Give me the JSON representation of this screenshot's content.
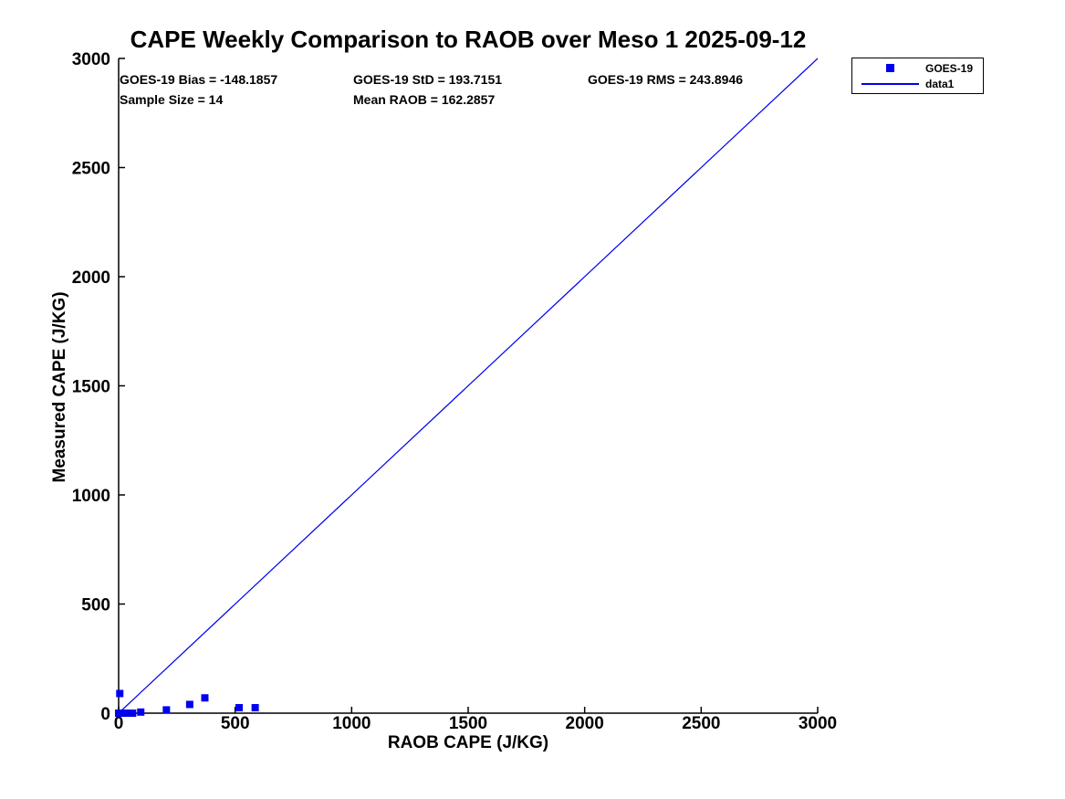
{
  "chart_data": {
    "type": "scatter",
    "title": "CAPE Weekly Comparison to RAOB over Meso 1 2025-09-12",
    "xlabel": "RAOB CAPE (J/KG)",
    "ylabel": "Measured CAPE (J/KG)",
    "xlim": [
      0,
      3000
    ],
    "ylim": [
      0,
      3000
    ],
    "xticks": [
      0,
      500,
      1000,
      1500,
      2000,
      2500,
      3000
    ],
    "yticks": [
      0,
      500,
      1000,
      1500,
      2000,
      2500,
      3000
    ],
    "grid": false,
    "legend_position": "top-right-outside",
    "annotations": {
      "bias": "GOES-19 Bias = -148.1857",
      "std": "GOES-19 StD = 193.7151",
      "rms": "GOES-19 RMS = 243.8946",
      "sample_size": "Sample Size = 14",
      "mean_raob": "Mean RAOB = 162.2857"
    },
    "colors": {
      "series_blue": "#0000EE",
      "axis_black": "#000000",
      "background": "#FFFFFF"
    },
    "series": [
      {
        "name": "GOES-19",
        "type": "scatter",
        "marker": "square",
        "color": "#0000EE",
        "points": [
          [
            5,
            90
          ],
          [
            0,
            0
          ],
          [
            8,
            0
          ],
          [
            15,
            0
          ],
          [
            22,
            0
          ],
          [
            30,
            0
          ],
          [
            45,
            0
          ],
          [
            60,
            0
          ],
          [
            95,
            5
          ],
          [
            205,
            15
          ],
          [
            305,
            40
          ],
          [
            370,
            70
          ],
          [
            517,
            25
          ],
          [
            586,
            25
          ]
        ]
      },
      {
        "name": "data1",
        "type": "line",
        "color": "#0000EE",
        "x": [
          0,
          3000
        ],
        "y": [
          0,
          3000
        ]
      }
    ]
  }
}
